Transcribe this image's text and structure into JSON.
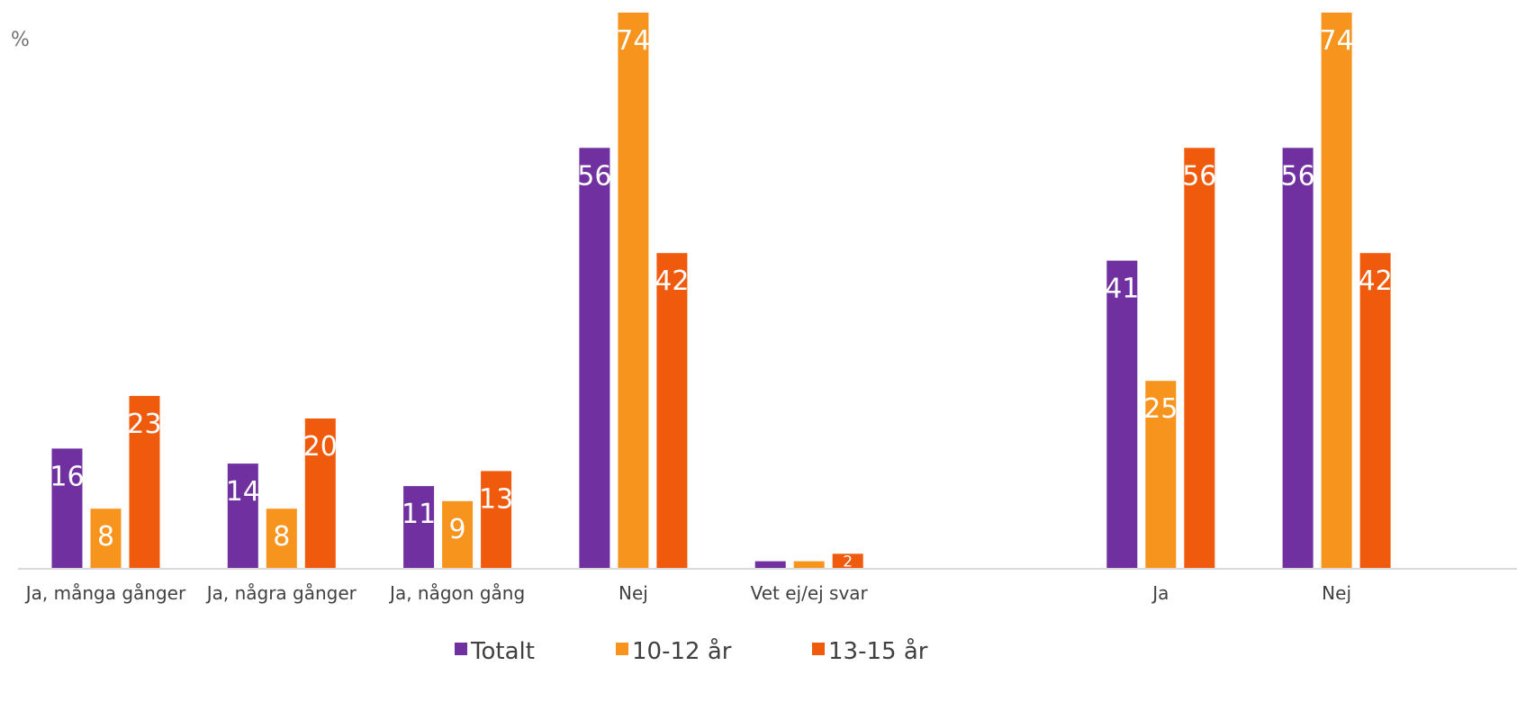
{
  "chart_data": {
    "type": "bar",
    "unit_label": "%",
    "categories": [
      "Ja, många gånger",
      "Ja, några gånger",
      "Ja, någon gång",
      "Nej",
      "Vet ej/ej svar",
      "",
      "Ja",
      "Nej"
    ],
    "series": [
      {
        "name": "Totalt",
        "color": "#7030A0",
        "values": [
          16,
          14,
          11,
          56,
          1,
          null,
          41,
          56
        ]
      },
      {
        "name": "10-12 år",
        "color": "#F7941D",
        "values": [
          8,
          8,
          9,
          74,
          1,
          null,
          25,
          74
        ]
      },
      {
        "name": "13-15 år",
        "color": "#F05A0C",
        "values": [
          23,
          20,
          13,
          42,
          2,
          null,
          56,
          42
        ]
      }
    ],
    "data_labels_shown": [
      [
        true,
        true,
        true,
        true,
        false,
        false,
        true,
        true
      ],
      [
        true,
        true,
        true,
        true,
        false,
        false,
        true,
        true
      ],
      [
        true,
        true,
        true,
        true,
        true,
        false,
        true,
        true
      ]
    ],
    "ylim": [
      0,
      74
    ],
    "grid": false,
    "legend": "bottom-center",
    "axis_color": "#D9D9D9"
  }
}
